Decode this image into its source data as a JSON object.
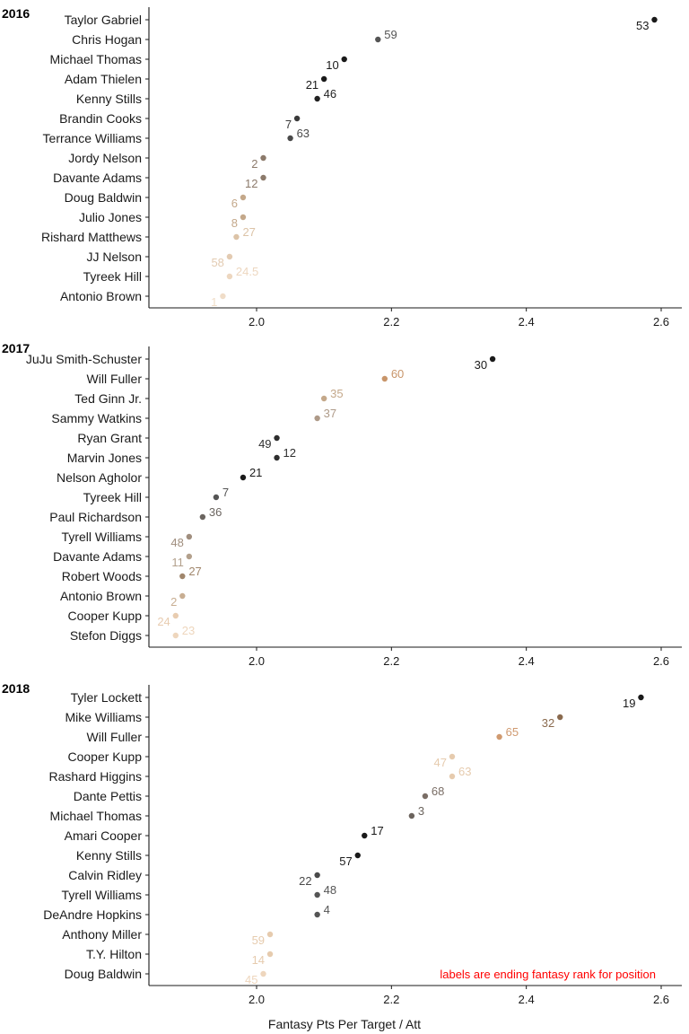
{
  "chart_data": {
    "type": "scatter",
    "xlabel": "Fantasy Pts Per Target / Att",
    "xlim": [
      1.83,
      2.63
    ],
    "xticks": [
      "2.0",
      "2.2",
      "2.4",
      "2.6"
    ],
    "annotation": "labels are ending fantasy rank for position",
    "annotation_color": "#ff0000",
    "dot_color_scale": "dark (low rank number) to light (high rank number) per panel",
    "panels": [
      {
        "title": "2016",
        "points": [
          {
            "player": "Taylor Gabriel",
            "x": 2.59,
            "rank": "53",
            "color": "#1a1a1a"
          },
          {
            "player": "Chris Hogan",
            "x": 2.18,
            "rank": "59",
            "color": "#555555"
          },
          {
            "player": "Michael Thomas",
            "x": 2.13,
            "rank": "10",
            "color": "#1a1a1a"
          },
          {
            "player": "Adam Thielen",
            "x": 2.1,
            "rank": "21",
            "color": "#1a1a1a"
          },
          {
            "player": "Kenny Stills",
            "x": 2.09,
            "rank": "46",
            "color": "#222222"
          },
          {
            "player": "Brandin Cooks",
            "x": 2.06,
            "rank": "7",
            "color": "#3a3a3a"
          },
          {
            "player": "Terrance Williams",
            "x": 2.05,
            "rank": "63",
            "color": "#4a4a4a"
          },
          {
            "player": "Jordy Nelson",
            "x": 2.01,
            "rank": "2",
            "color": "#8c7a6b"
          },
          {
            "player": "Davante Adams",
            "x": 2.01,
            "rank": "12",
            "color": "#8c7a6b"
          },
          {
            "player": "Doug Baldwin",
            "x": 1.98,
            "rank": "6",
            "color": "#c4a88a"
          },
          {
            "player": "Julio Jones",
            "x": 1.98,
            "rank": "8",
            "color": "#c4a88a"
          },
          {
            "player": "Rishard Matthews",
            "x": 1.97,
            "rank": "27",
            "color": "#dcc3a7"
          },
          {
            "player": "JJ Nelson",
            "x": 1.96,
            "rank": "58",
            "color": "#e3cbb2"
          },
          {
            "player": "Tyreek Hill",
            "x": 1.96,
            "rank": "24.5",
            "color": "#edd7c0"
          },
          {
            "player": "Antonio Brown",
            "x": 1.95,
            "rank": "1",
            "color": "#f0ddc8"
          }
        ]
      },
      {
        "title": "2017",
        "points": [
          {
            "player": "JuJu Smith-Schuster",
            "x": 2.35,
            "rank": "30",
            "color": "#1a1a1a"
          },
          {
            "player": "Will Fuller",
            "x": 2.19,
            "rank": "60",
            "color": "#c8956a"
          },
          {
            "player": "Ted Ginn Jr.",
            "x": 2.1,
            "rank": "35",
            "color": "#c4a88a"
          },
          {
            "player": "Sammy Watkins",
            "x": 2.09,
            "rank": "37",
            "color": "#ae9a88"
          },
          {
            "player": "Ryan Grant",
            "x": 2.03,
            "rank": "49",
            "color": "#2e2e2e"
          },
          {
            "player": "Marvin Jones",
            "x": 2.03,
            "rank": "12",
            "color": "#2e2e2e"
          },
          {
            "player": "Nelson Agholor",
            "x": 1.98,
            "rank": "21",
            "color": "#1a1a1a"
          },
          {
            "player": "Tyreek Hill",
            "x": 1.94,
            "rank": "7",
            "color": "#555555"
          },
          {
            "player": "Paul Richardson",
            "x": 1.92,
            "rank": "36",
            "color": "#6b6560"
          },
          {
            "player": "Tyrell Williams",
            "x": 1.9,
            "rank": "48",
            "color": "#a08e7e"
          },
          {
            "player": "Davante Adams",
            "x": 1.9,
            "rank": "11",
            "color": "#b3a08c"
          },
          {
            "player": "Robert Woods",
            "x": 1.89,
            "rank": "27",
            "color": "#a0866c"
          },
          {
            "player": "Antonio Brown",
            "x": 1.89,
            "rank": "2",
            "color": "#c8ae92"
          },
          {
            "player": "Cooper Kupp",
            "x": 1.88,
            "rank": "24",
            "color": "#e8ccb0"
          },
          {
            "player": "Stefon Diggs",
            "x": 1.88,
            "rank": "23",
            "color": "#eed6bd"
          }
        ]
      },
      {
        "title": "2018",
        "points": [
          {
            "player": "Tyler Lockett",
            "x": 2.57,
            "rank": "19",
            "color": "#1a1a1a"
          },
          {
            "player": "Mike Williams",
            "x": 2.45,
            "rank": "32",
            "color": "#8a6a4e"
          },
          {
            "player": "Will Fuller",
            "x": 2.36,
            "rank": "65",
            "color": "#d09a70"
          },
          {
            "player": "Cooper Kupp",
            "x": 2.29,
            "rank": "47",
            "color": "#e6cbae"
          },
          {
            "player": "Rashard Higgins",
            "x": 2.29,
            "rank": "63",
            "color": "#e6cbae"
          },
          {
            "player": "Dante Pettis",
            "x": 2.25,
            "rank": "68",
            "color": "#7a6e66"
          },
          {
            "player": "Michael Thomas",
            "x": 2.23,
            "rank": "3",
            "color": "#6b635d"
          },
          {
            "player": "Amari Cooper",
            "x": 2.16,
            "rank": "17",
            "color": "#1a1a1a"
          },
          {
            "player": "Kenny Stills",
            "x": 2.15,
            "rank": "57",
            "color": "#1a1a1a"
          },
          {
            "player": "Calvin Ridley",
            "x": 2.09,
            "rank": "22",
            "color": "#4a4a4a"
          },
          {
            "player": "Tyrell Williams",
            "x": 2.09,
            "rank": "48",
            "color": "#555555"
          },
          {
            "player": "DeAndre Hopkins",
            "x": 2.09,
            "rank": "4",
            "color": "#555555"
          },
          {
            "player": "Anthony Miller",
            "x": 2.02,
            "rank": "59",
            "color": "#e6cbae"
          },
          {
            "player": "T.Y. Hilton",
            "x": 2.02,
            "rank": "14",
            "color": "#e6cbae"
          },
          {
            "player": "Doug Baldwin",
            "x": 2.01,
            "rank": "45",
            "color": "#eed6bd"
          }
        ]
      }
    ]
  }
}
